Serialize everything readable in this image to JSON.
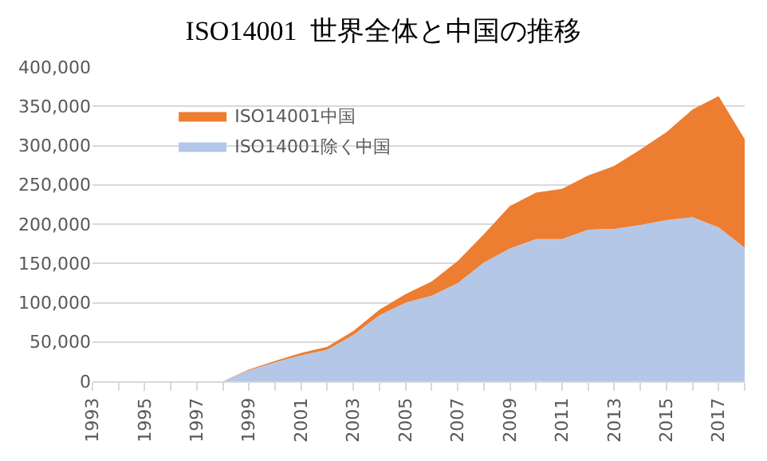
{
  "chart_data": {
    "type": "area",
    "title": "ISO14001  世界全体と中国の推移",
    "stacked": true,
    "categories": [
      "1993",
      null,
      "1995",
      null,
      "1997",
      null,
      "1999",
      null,
      "2001",
      null,
      "2003",
      null,
      "2005",
      null,
      "2007",
      null,
      "2009",
      null,
      "2011",
      null,
      "2013",
      null,
      "2015",
      null,
      "2017",
      null
    ],
    "series": [
      {
        "name": "ISO14001除く中国",
        "color": "#b4c7e7",
        "values": [
          0,
          0,
          0,
          0,
          0,
          0,
          14000,
          24000,
          33000,
          40000,
          59000,
          84000,
          100000,
          109000,
          125000,
          151000,
          169000,
          181000,
          181000,
          193000,
          194000,
          199000,
          205000,
          209000,
          196000,
          170000
        ]
      },
      {
        "name": "ISO14001中国",
        "color": "#ed7d31",
        "values": [
          0,
          0,
          0,
          0,
          0,
          0,
          1000,
          2000,
          3000,
          4000,
          5000,
          7000,
          11000,
          18000,
          28000,
          36000,
          54000,
          59000,
          64000,
          69000,
          80000,
          96000,
          112000,
          137000,
          167000,
          138000
        ]
      }
    ],
    "ylim": [
      0,
      400000
    ],
    "yticks": [
      {
        "value": 0,
        "label": "0"
      },
      {
        "value": 50000,
        "label": "50,000"
      },
      {
        "value": 100000,
        "label": "100,000"
      },
      {
        "value": 150000,
        "label": "150,000"
      },
      {
        "value": 200000,
        "label": "200,000"
      },
      {
        "value": 250000,
        "label": "250,000"
      },
      {
        "value": 300000,
        "label": "300,000"
      },
      {
        "value": 350000,
        "label": "350,000"
      },
      {
        "value": 400000,
        "label": "400,000"
      }
    ],
    "grid": "y",
    "legend": "top left"
  }
}
